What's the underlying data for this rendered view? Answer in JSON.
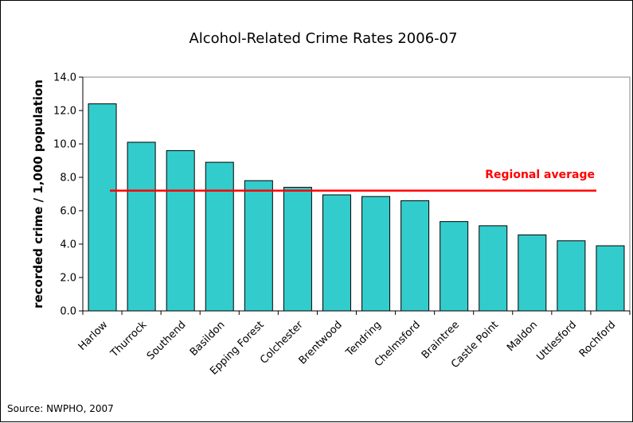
{
  "chart_data": {
    "type": "bar",
    "title": "Alcohol-Related Crime Rates 2006-07",
    "xlabel": "",
    "ylabel": "recorded crime / 1,000 population",
    "ylim": [
      0,
      14
    ],
    "yticks": [
      "0.0",
      "2.0",
      "4.0",
      "6.0",
      "8.0",
      "10.0",
      "12.0",
      "14.0"
    ],
    "categories": [
      "Harlow",
      "Thurrock",
      "Southend",
      "Basildon",
      "Epping Forest",
      "Colchester",
      "Brentwood",
      "Tendring",
      "Chelmsford",
      "Braintree",
      "Castle Point",
      "Maldon",
      "Uttlesford",
      "Rochford"
    ],
    "values": [
      12.4,
      10.1,
      9.6,
      8.9,
      7.8,
      7.4,
      6.95,
      6.85,
      6.6,
      5.35,
      5.1,
      4.55,
      4.2,
      3.9
    ],
    "reference_line": {
      "label": "Regional average",
      "value": 7.2
    },
    "grid": false,
    "colors": {
      "bar": "#33CCCC",
      "bar_edge": "#000000",
      "reference": "#FF0000"
    }
  },
  "source": "Source: NWPHO, 2007"
}
